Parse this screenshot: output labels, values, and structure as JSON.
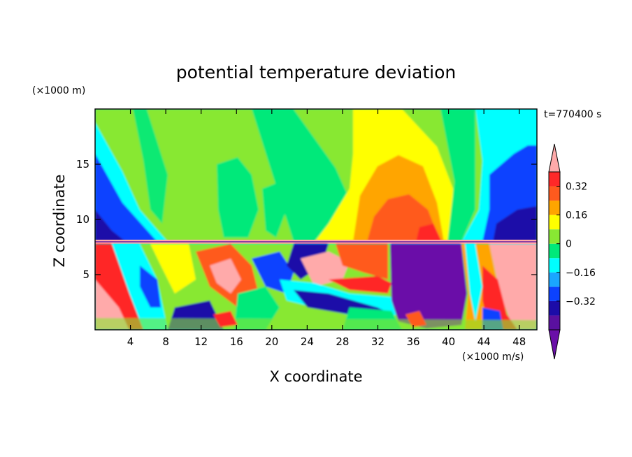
{
  "chart_data": {
    "type": "heatmap",
    "title": "potential temperature deviation",
    "xlabel": "X coordinate",
    "ylabel": "Z coordinate",
    "x_unit": "(×1000 m/s)",
    "y_unit": "(×1000 m)",
    "time_label": "t=770400 s",
    "xlim": [
      0,
      50
    ],
    "ylim": [
      0,
      20
    ],
    "x_ticks": [
      4,
      8,
      12,
      16,
      20,
      24,
      28,
      32,
      36,
      40,
      44,
      48
    ],
    "y_ticks": [
      5,
      10,
      15
    ],
    "colorbar": {
      "levels": [
        -0.48,
        -0.4,
        -0.32,
        -0.24,
        -0.16,
        -0.08,
        0,
        0.08,
        0.16,
        0.24,
        0.32,
        0.4
      ],
      "colors": [
        "#6a0fa8",
        "#5a10a0",
        "#1c0ca8",
        "#0c42ff",
        "#1aa6ff",
        "#00ffff",
        "#00e97a",
        "#88e833",
        "#ffff00",
        "#ffa500",
        "#ff5a1e",
        "#ff2828",
        "#ffaaaa"
      ],
      "labeled_ticks": [
        0.32,
        0.16,
        0,
        -0.16,
        -0.32
      ],
      "labels": [
        "0.32",
        "0.16",
        "0",
        "−0.16",
        "−0.32"
      ]
    }
  }
}
